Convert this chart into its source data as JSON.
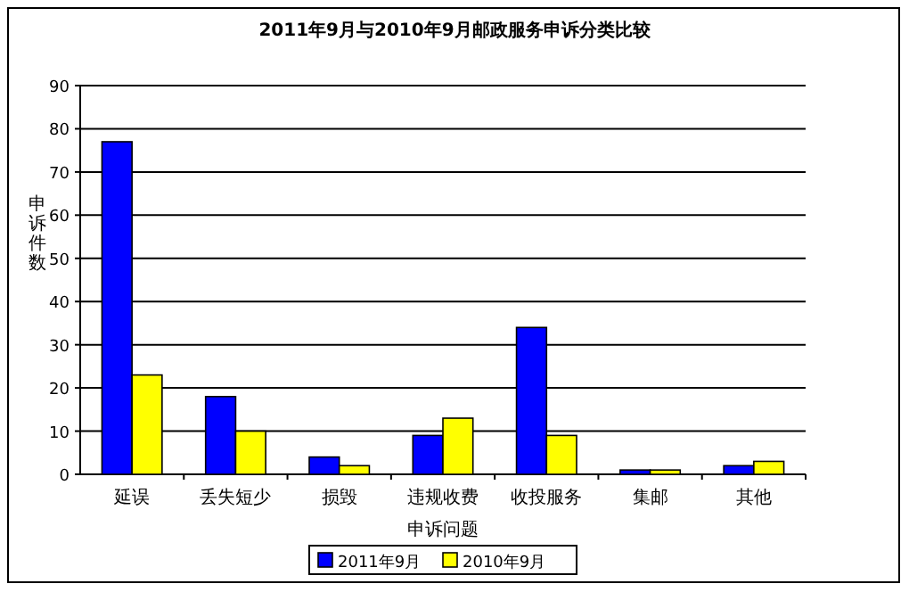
{
  "chart_data": {
    "type": "bar",
    "title": "2011年9月与2010年9月邮政服务申诉分类比较",
    "xlabel": "申诉问题",
    "ylabel": "申诉件数",
    "categories": [
      "延误",
      "丢失短少",
      "损毁",
      "违规收费",
      "收投服务",
      "集邮",
      "其他"
    ],
    "series": [
      {
        "name": "2011年9月",
        "color": "#0000ff",
        "values": [
          77,
          18,
          4,
          9,
          34,
          1,
          2
        ]
      },
      {
        "name": "2010年9月",
        "color": "#ffff00",
        "values": [
          23,
          10,
          2,
          13,
          9,
          1,
          3
        ]
      }
    ],
    "ylim": [
      0,
      90
    ],
    "yticks": [
      0,
      10,
      20,
      30,
      40,
      50,
      60,
      70,
      80,
      90
    ],
    "grid": "y",
    "legend": "bottom"
  }
}
